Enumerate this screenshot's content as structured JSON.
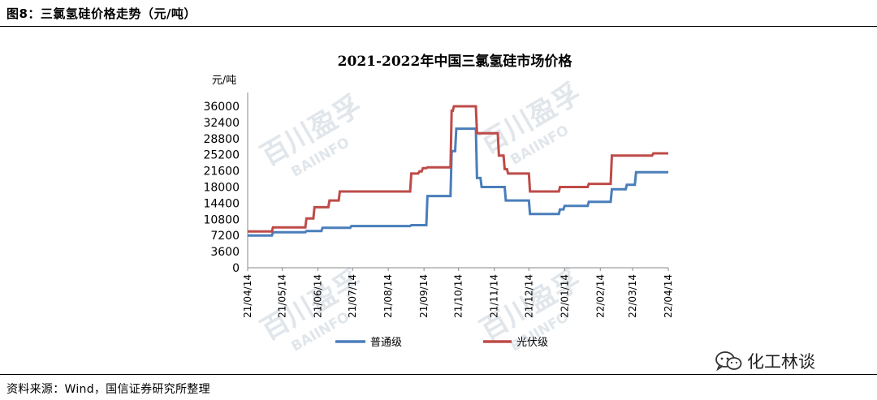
{
  "figure_title": "图8：三氯氢硅价格走势（元/吨）",
  "source": "资料来源：Wind，国信证券研究所整理",
  "watermark": {
    "brand": "百川盈孚",
    "brand_en": "BAIINFO"
  },
  "wechat": {
    "label": "化工林谈",
    "icon": "wechat-icon"
  },
  "colors": {
    "series_1": "#4a7ebb",
    "series_2": "#be4b48"
  },
  "chart_data": {
    "type": "line",
    "title": "2021-2022年中国三氯氢硅市场价格",
    "ylabel": "元/吨",
    "xlabel": "",
    "ylim": [
      0,
      36000
    ],
    "yticks": [
      0,
      3600,
      7200,
      10800,
      14400,
      18000,
      21600,
      25200,
      28800,
      32400,
      36000
    ],
    "xlim": [
      "2021-04-14",
      "2022-04-14"
    ],
    "xticks": [
      "21/04/14",
      "21/05/14",
      "21/06/14",
      "21/07/14",
      "21/08/14",
      "21/09/14",
      "21/10/14",
      "21/11/14",
      "21/12/14",
      "22/01/14",
      "22/02/14",
      "22/03/14",
      "22/04/14"
    ],
    "grid": false,
    "legend": "bottom",
    "series": [
      {
        "name": "普通级",
        "color": "#4a7ebb",
        "x": [
          "2021-04-14",
          "2021-05-05",
          "2021-05-06",
          "2021-06-03",
          "2021-06-04",
          "2021-06-17",
          "2021-06-18",
          "2021-07-12",
          "2021-07-13",
          "2021-09-02",
          "2021-09-03",
          "2021-09-16",
          "2021-09-17",
          "2021-10-07",
          "2021-10-08",
          "2021-10-11",
          "2021-10-12",
          "2021-10-29",
          "2021-10-30",
          "2021-11-02",
          "2021-11-03",
          "2021-11-23",
          "2021-11-24",
          "2021-12-14",
          "2021-12-15",
          "2022-01-09",
          "2022-01-10",
          "2022-01-13",
          "2022-01-14",
          "2022-02-03",
          "2022-02-04",
          "2022-02-23",
          "2022-02-24",
          "2022-03-08",
          "2022-03-09",
          "2022-03-16",
          "2022-03-17",
          "2022-04-14"
        ],
        "values": [
          7200,
          7200,
          7900,
          7900,
          8200,
          8200,
          8900,
          8900,
          9300,
          9300,
          9500,
          9500,
          16000,
          16000,
          26000,
          26000,
          31000,
          31000,
          20000,
          20000,
          18000,
          18000,
          15000,
          15000,
          12000,
          12000,
          13000,
          13000,
          13800,
          13800,
          14700,
          14700,
          17500,
          17500,
          18500,
          18500,
          21300,
          21300
        ]
      },
      {
        "name": "光伏级",
        "color": "#be4b48",
        "x": [
          "2021-04-14",
          "2021-05-05",
          "2021-05-06",
          "2021-06-03",
          "2021-06-04",
          "2021-06-10",
          "2021-06-11",
          "2021-06-23",
          "2021-06-24",
          "2021-07-02",
          "2021-07-03",
          "2021-09-02",
          "2021-09-03",
          "2021-09-09",
          "2021-09-10",
          "2021-09-12",
          "2021-09-13",
          "2021-09-16",
          "2021-09-17",
          "2021-10-07",
          "2021-10-08",
          "2021-10-09",
          "2021-10-10",
          "2021-10-29",
          "2021-10-30",
          "2021-11-17",
          "2021-11-18",
          "2021-11-22",
          "2021-11-23",
          "2021-11-25",
          "2021-11-26",
          "2021-12-02",
          "2021-12-03",
          "2021-12-14",
          "2021-12-15",
          "2022-01-09",
          "2022-01-10",
          "2022-02-03",
          "2022-02-04",
          "2022-02-23",
          "2022-02-24",
          "2022-03-31",
          "2022-04-01",
          "2022-04-14"
        ],
        "values": [
          8100,
          8100,
          9000,
          9000,
          11000,
          11000,
          13500,
          13500,
          15000,
          15000,
          17000,
          17000,
          21000,
          21000,
          21500,
          21500,
          22200,
          22200,
          22400,
          22400,
          35000,
          35000,
          36000,
          36000,
          30000,
          30000,
          25000,
          25000,
          22000,
          22000,
          21000,
          21000,
          21000,
          21000,
          17000,
          17000,
          18000,
          18000,
          18700,
          18700,
          25000,
          25000,
          25500,
          25500
        ]
      }
    ]
  }
}
